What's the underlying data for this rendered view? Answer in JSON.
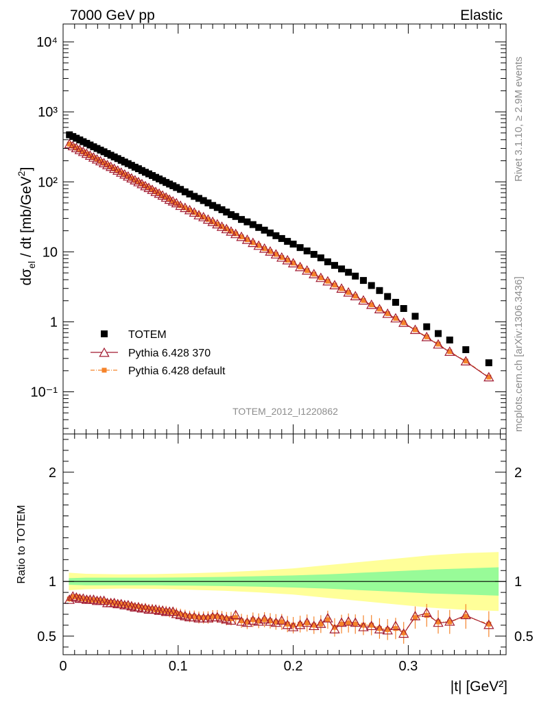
{
  "header": {
    "left": "7000 GeV pp",
    "right": "Elastic"
  },
  "side_labels": {
    "rivet": "Rivet 3.1.10, ≥ 2.9M events",
    "mcplots": "mcplots.cern.ch [arXiv:1306.3436]"
  },
  "analysis_id": "TOTEM_2012_I1220862",
  "colors": {
    "data": "#000000",
    "pythia370": "#a0182e",
    "pythia_default": "#f5832a",
    "band_inner": "#98fb98",
    "band_outer": "#ffff99"
  },
  "chart_data": [
    {
      "type": "scatter",
      "title": "",
      "xlabel": "|t| [GeV²]",
      "ylabel": "dσel / dt [mb/GeV²]",
      "ylabel_parts": {
        "a": "dσ",
        "sub": "el",
        "b": " / dt [mb/GeV",
        "sup": "2",
        "c": "]"
      },
      "yscale": "log",
      "xlim": [
        0,
        0.385
      ],
      "ylim": [
        0.025,
        18000
      ],
      "grid": false,
      "legend_position": "bottom-left",
      "y_tick_labels": [
        "10⁻¹",
        "1",
        "10",
        "10²",
        "10³",
        "10⁴"
      ],
      "y_tick_values": [
        0.1,
        1,
        10,
        100,
        1000,
        10000
      ],
      "series": [
        {
          "name": "TOTEM",
          "marker": "square",
          "x": [
            0.0055,
            0.0085,
            0.0115,
            0.0145,
            0.0175,
            0.0205,
            0.0235,
            0.0265,
            0.0295,
            0.0325,
            0.0355,
            0.0385,
            0.0415,
            0.0445,
            0.0475,
            0.0505,
            0.0535,
            0.0565,
            0.0595,
            0.0625,
            0.0655,
            0.0685,
            0.0715,
            0.0745,
            0.0775,
            0.0805,
            0.0835,
            0.0865,
            0.0895,
            0.0925,
            0.0955,
            0.0985,
            0.102,
            0.106,
            0.11,
            0.114,
            0.118,
            0.122,
            0.126,
            0.13,
            0.134,
            0.138,
            0.142,
            0.146,
            0.15,
            0.155,
            0.16,
            0.165,
            0.17,
            0.175,
            0.18,
            0.185,
            0.19,
            0.195,
            0.2,
            0.206,
            0.212,
            0.218,
            0.224,
            0.23,
            0.236,
            0.242,
            0.248,
            0.254,
            0.261,
            0.268,
            0.275,
            0.282,
            0.289,
            0.296,
            0.306,
            0.316,
            0.326,
            0.336,
            0.35,
            0.37
          ],
          "y": [
            470,
            444,
            420,
            397,
            375,
            355,
            336,
            317,
            300,
            284,
            269,
            254,
            240,
            227,
            215,
            203,
            192,
            182,
            172,
            162,
            154,
            145,
            137,
            130,
            123,
            116,
            110,
            104,
            98,
            93,
            88,
            83,
            78,
            72,
            67,
            62,
            58,
            54,
            50,
            46,
            43,
            40,
            37,
            34,
            32,
            29,
            26.8,
            24.5,
            22.3,
            20.4,
            18.6,
            17.0,
            15.5,
            14.1,
            12.9,
            11.5,
            10.3,
            9.2,
            8.2,
            7.2,
            6.4,
            5.7,
            5.1,
            4.5,
            3.9,
            3.3,
            2.8,
            2.3,
            1.9,
            1.55,
            1.2,
            0.85,
            0.68,
            0.55,
            0.4,
            0.26
          ]
        },
        {
          "name": "Pythia 6.428 370",
          "marker": "open-triangle",
          "x": [
            0.0055,
            0.0085,
            0.0115,
            0.0145,
            0.0175,
            0.0205,
            0.0235,
            0.0265,
            0.0295,
            0.0325,
            0.0355,
            0.0385,
            0.0415,
            0.0445,
            0.0475,
            0.0505,
            0.0535,
            0.0565,
            0.0595,
            0.0625,
            0.0655,
            0.0685,
            0.0715,
            0.0745,
            0.0775,
            0.0805,
            0.0835,
            0.0865,
            0.0895,
            0.0925,
            0.0955,
            0.0985,
            0.102,
            0.106,
            0.11,
            0.114,
            0.118,
            0.122,
            0.126,
            0.13,
            0.134,
            0.138,
            0.142,
            0.146,
            0.15,
            0.155,
            0.16,
            0.165,
            0.17,
            0.175,
            0.18,
            0.185,
            0.19,
            0.195,
            0.2,
            0.206,
            0.212,
            0.218,
            0.224,
            0.23,
            0.236,
            0.242,
            0.248,
            0.254,
            0.261,
            0.268,
            0.275,
            0.282,
            0.289,
            0.296,
            0.306,
            0.316,
            0.326,
            0.336,
            0.35,
            0.37
          ],
          "y": [
            342,
            320,
            300,
            282,
            265,
            249,
            234,
            220,
            207,
            195,
            183,
            172,
            162,
            152,
            143,
            134,
            126,
            118,
            111,
            104,
            98,
            92,
            86,
            81,
            76,
            71,
            67,
            63,
            59,
            55,
            52,
            49,
            45,
            42,
            39,
            36,
            33,
            31,
            28.6,
            26.5,
            24.5,
            22.6,
            20.9,
            19.3,
            17.8,
            16.2,
            14.7,
            13.3,
            12.1,
            11.0,
            10.0,
            9.1,
            8.2,
            7.5,
            6.8,
            6.0,
            5.35,
            4.75,
            4.2,
            3.75,
            3.3,
            2.95,
            2.6,
            2.3,
            2.0,
            1.73,
            1.5,
            1.29,
            1.11,
            0.96,
            0.76,
            0.6,
            0.47,
            0.37,
            0.27,
            0.16
          ]
        },
        {
          "name": "Pythia 6.428 default",
          "marker": "filled-square-dashdot",
          "x": [
            0.0055,
            0.0085,
            0.0115,
            0.0145,
            0.0175,
            0.0205,
            0.0235,
            0.0265,
            0.0295,
            0.0325,
            0.0355,
            0.0385,
            0.0415,
            0.0445,
            0.0475,
            0.0505,
            0.0535,
            0.0565,
            0.0595,
            0.0625,
            0.0655,
            0.0685,
            0.0715,
            0.0745,
            0.0775,
            0.0805,
            0.0835,
            0.0865,
            0.0895,
            0.0925,
            0.0955,
            0.0985,
            0.102,
            0.106,
            0.11,
            0.114,
            0.118,
            0.122,
            0.126,
            0.13,
            0.134,
            0.138,
            0.142,
            0.146,
            0.15,
            0.155,
            0.16,
            0.165,
            0.17,
            0.175,
            0.18,
            0.185,
            0.19,
            0.195,
            0.2,
            0.206,
            0.212,
            0.218,
            0.224,
            0.23,
            0.236,
            0.242,
            0.248,
            0.254,
            0.261,
            0.268,
            0.275,
            0.282,
            0.289,
            0.296,
            0.306,
            0.316,
            0.326,
            0.336,
            0.35,
            0.37
          ],
          "y": [
            345,
            323,
            303,
            285,
            267,
            251,
            236,
            222,
            209,
            196,
            185,
            174,
            163,
            153,
            144,
            135,
            127,
            119,
            112,
            105,
            99,
            93,
            87,
            82,
            77,
            72,
            68,
            63,
            60,
            56,
            52,
            49,
            45.5,
            42.5,
            39.4,
            36.5,
            33.8,
            31.3,
            29.0,
            26.8,
            24.8,
            22.9,
            21.2,
            19.6,
            18.1,
            16.4,
            14.9,
            13.5,
            12.3,
            11.1,
            10.1,
            9.2,
            8.3,
            7.6,
            6.9,
            6.1,
            5.4,
            4.8,
            4.25,
            3.8,
            3.35,
            2.98,
            2.63,
            2.33,
            2.02,
            1.75,
            1.52,
            1.31,
            1.12,
            0.97,
            0.77,
            0.61,
            0.48,
            0.375,
            0.275,
            0.162
          ]
        }
      ]
    },
    {
      "type": "line",
      "title": "",
      "xlabel": "|t| [GeV²]",
      "ylabel": "Ratio to TOTEM",
      "xlim": [
        0,
        0.385
      ],
      "ylim": [
        0.33,
        2.35
      ],
      "grid": false,
      "x_tick_labels": [
        "0",
        "0.1",
        "0.2",
        "0.3"
      ],
      "x_tick_values": [
        0,
        0.1,
        0.2,
        0.3
      ],
      "y_tick_labels": [
        "0.5",
        "1",
        "2"
      ],
      "y_tick_values": [
        0.5,
        1,
        2
      ],
      "reference_line": 1,
      "band_x": [
        0.005,
        0.02,
        0.05,
        0.08,
        0.11,
        0.14,
        0.17,
        0.2,
        0.23,
        0.26,
        0.29,
        0.32,
        0.35,
        0.38
      ],
      "band_inner_halfwidth": [
        0.03,
        0.035,
        0.035,
        0.035,
        0.038,
        0.042,
        0.048,
        0.055,
        0.065,
        0.08,
        0.095,
        0.11,
        0.12,
        0.13
      ],
      "band_outer_halfwidth": [
        0.08,
        0.07,
        0.065,
        0.068,
        0.075,
        0.085,
        0.1,
        0.12,
        0.15,
        0.18,
        0.21,
        0.24,
        0.26,
        0.27
      ],
      "series": [
        {
          "name": "Pythia 6.428 370",
          "marker": "open-triangle",
          "x": [
            0.0055,
            0.0085,
            0.0115,
            0.0145,
            0.0175,
            0.0205,
            0.0235,
            0.0265,
            0.0295,
            0.0325,
            0.0355,
            0.0385,
            0.0415,
            0.0445,
            0.0475,
            0.0505,
            0.0535,
            0.0565,
            0.0595,
            0.0625,
            0.0655,
            0.0685,
            0.0715,
            0.0745,
            0.0775,
            0.0805,
            0.0835,
            0.0865,
            0.0895,
            0.0925,
            0.0955,
            0.0985,
            0.102,
            0.106,
            0.11,
            0.114,
            0.118,
            0.122,
            0.126,
            0.13,
            0.134,
            0.138,
            0.142,
            0.146,
            0.15,
            0.155,
            0.16,
            0.165,
            0.17,
            0.175,
            0.18,
            0.185,
            0.19,
            0.195,
            0.2,
            0.206,
            0.212,
            0.218,
            0.224,
            0.23,
            0.236,
            0.242,
            0.248,
            0.254,
            0.261,
            0.268,
            0.275,
            0.282,
            0.289,
            0.296,
            0.306,
            0.316,
            0.326,
            0.336,
            0.35,
            0.37
          ],
          "y": [
            0.83,
            0.86,
            0.85,
            0.84,
            0.84,
            0.83,
            0.83,
            0.83,
            0.82,
            0.82,
            0.82,
            0.8,
            0.8,
            0.8,
            0.79,
            0.79,
            0.78,
            0.78,
            0.77,
            0.76,
            0.76,
            0.75,
            0.75,
            0.74,
            0.74,
            0.74,
            0.73,
            0.73,
            0.72,
            0.72,
            0.72,
            0.7,
            0.69,
            0.68,
            0.67,
            0.67,
            0.66,
            0.66,
            0.66,
            0.67,
            0.67,
            0.66,
            0.65,
            0.64,
            0.69,
            0.63,
            0.62,
            0.64,
            0.63,
            0.65,
            0.63,
            0.62,
            0.64,
            0.6,
            0.58,
            0.6,
            0.62,
            0.59,
            0.61,
            0.66,
            0.56,
            0.62,
            0.63,
            0.62,
            0.58,
            0.59,
            0.56,
            0.55,
            0.59,
            0.52,
            0.68,
            0.71,
            0.62,
            0.63,
            0.69,
            0.6
          ]
        },
        {
          "name": "Pythia 6.428 default",
          "marker": "filled-square-dashdot",
          "x": [
            0.0055,
            0.0085,
            0.0115,
            0.0145,
            0.0175,
            0.0205,
            0.0235,
            0.0265,
            0.0295,
            0.0325,
            0.0355,
            0.0385,
            0.0415,
            0.0445,
            0.0475,
            0.0505,
            0.0535,
            0.0565,
            0.0595,
            0.0625,
            0.0655,
            0.0685,
            0.0715,
            0.0745,
            0.0775,
            0.0805,
            0.0835,
            0.0865,
            0.0895,
            0.0925,
            0.0955,
            0.0985,
            0.102,
            0.106,
            0.11,
            0.114,
            0.118,
            0.122,
            0.126,
            0.13,
            0.134,
            0.138,
            0.142,
            0.146,
            0.15,
            0.155,
            0.16,
            0.165,
            0.17,
            0.175,
            0.18,
            0.185,
            0.19,
            0.195,
            0.2,
            0.206,
            0.212,
            0.218,
            0.224,
            0.23,
            0.236,
            0.242,
            0.248,
            0.254,
            0.261,
            0.268,
            0.275,
            0.282,
            0.289,
            0.296,
            0.306,
            0.316,
            0.326,
            0.336,
            0.35,
            0.37
          ],
          "y": [
            0.84,
            0.86,
            0.86,
            0.85,
            0.84,
            0.84,
            0.83,
            0.83,
            0.83,
            0.82,
            0.82,
            0.81,
            0.81,
            0.8,
            0.8,
            0.79,
            0.79,
            0.78,
            0.78,
            0.77,
            0.77,
            0.76,
            0.76,
            0.75,
            0.75,
            0.74,
            0.74,
            0.73,
            0.73,
            0.72,
            0.72,
            0.71,
            0.7,
            0.69,
            0.68,
            0.68,
            0.67,
            0.67,
            0.67,
            0.68,
            0.68,
            0.67,
            0.66,
            0.66,
            0.67,
            0.64,
            0.63,
            0.65,
            0.64,
            0.65,
            0.64,
            0.63,
            0.63,
            0.61,
            0.6,
            0.61,
            0.62,
            0.6,
            0.61,
            0.65,
            0.58,
            0.61,
            0.62,
            0.61,
            0.6,
            0.6,
            0.57,
            0.56,
            0.57,
            0.53,
            0.67,
            0.69,
            0.63,
            0.63,
            0.68,
            0.61
          ]
        }
      ]
    }
  ]
}
